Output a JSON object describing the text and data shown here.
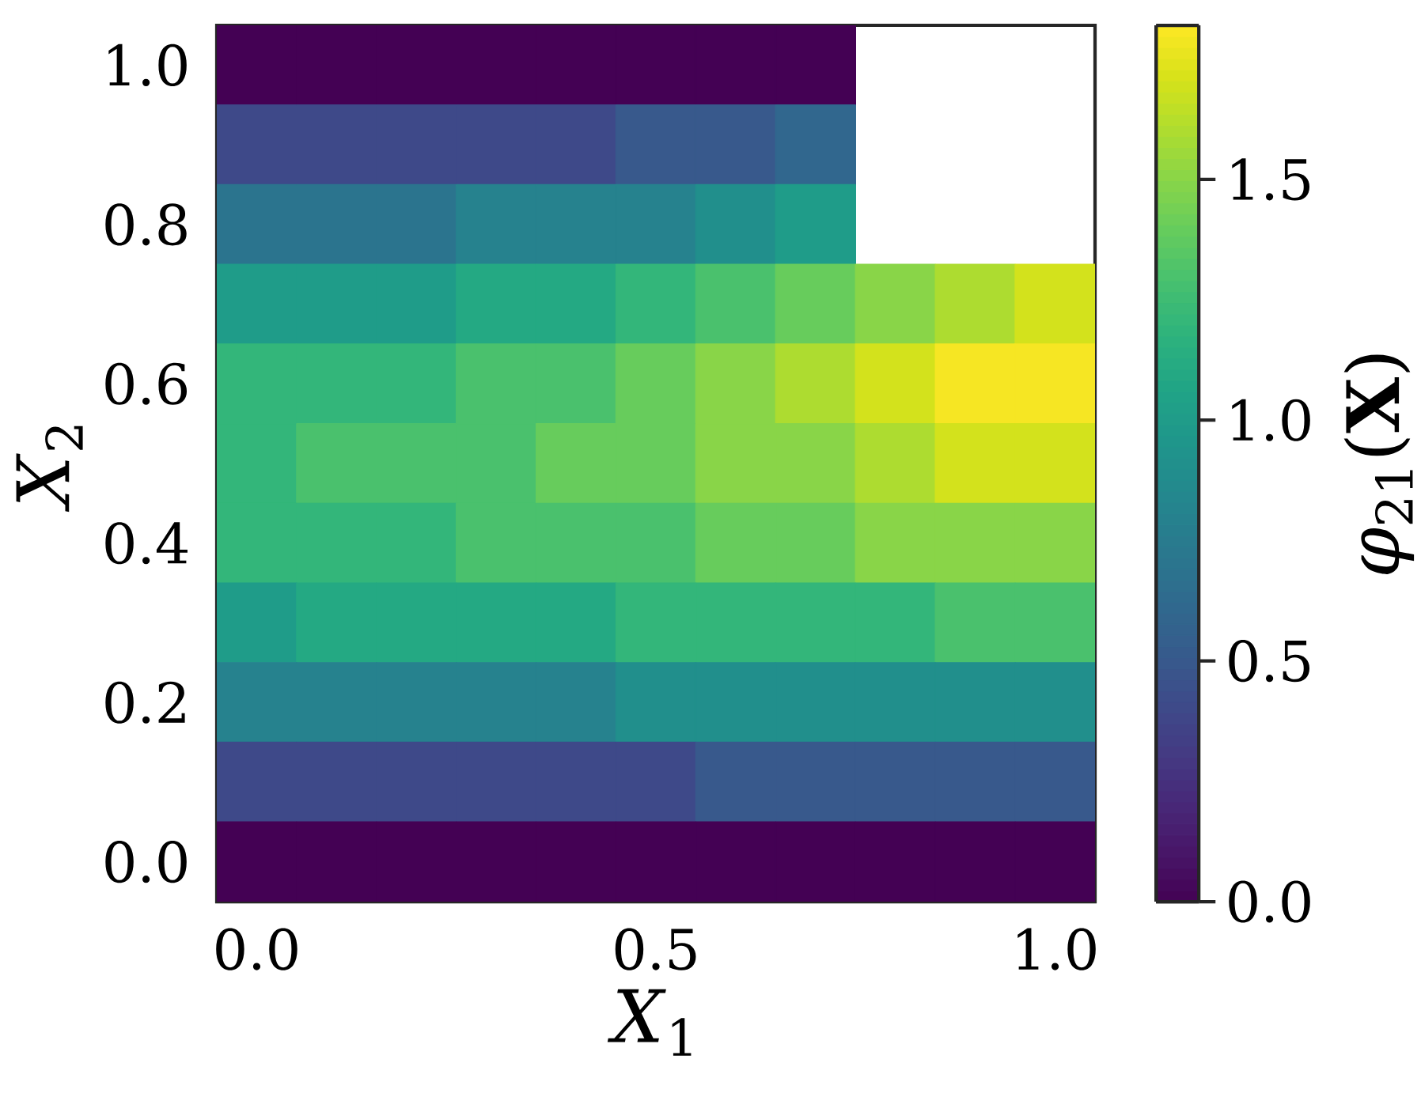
{
  "chart_data": {
    "type": "heatmap",
    "xlabel": "*X*$_{1}$",
    "ylabel": "*X*$_{2}$",
    "clabel": "*φ*$_{21}$(**X**)",
    "x": [
      0,
      0.1,
      0.2,
      0.3,
      0.4,
      0.5,
      0.6,
      0.7,
      0.8,
      0.9,
      1.0
    ],
    "y": [
      1.0,
      0.9,
      0.8,
      0.7,
      0.6,
      0.5,
      0.4,
      0.3,
      0.2,
      0.1,
      0.0
    ],
    "cells": [
      [
        0.0,
        0.0,
        0.0,
        0.0,
        0.0,
        0.0,
        0.0,
        0.0,
        null,
        null,
        null
      ],
      [
        0.4,
        0.4,
        0.4,
        0.4,
        0.4,
        0.5,
        0.5,
        0.6,
        null,
        null,
        null
      ],
      [
        0.7,
        0.7,
        0.7,
        0.8,
        0.8,
        0.8,
        0.9,
        1.0,
        null,
        null,
        null
      ],
      [
        1.0,
        1.0,
        1.0,
        1.1,
        1.1,
        1.2,
        1.3,
        1.4,
        1.5,
        1.6,
        1.7
      ],
      [
        1.2,
        1.2,
        1.2,
        1.3,
        1.3,
        1.4,
        1.5,
        1.6,
        1.7,
        1.8,
        1.8
      ],
      [
        1.2,
        1.3,
        1.3,
        1.3,
        1.4,
        1.4,
        1.5,
        1.5,
        1.6,
        1.7,
        1.7
      ],
      [
        1.2,
        1.2,
        1.2,
        1.3,
        1.3,
        1.3,
        1.4,
        1.4,
        1.5,
        1.5,
        1.5
      ],
      [
        1.0,
        1.1,
        1.1,
        1.1,
        1.1,
        1.2,
        1.2,
        1.2,
        1.2,
        1.3,
        1.3
      ],
      [
        0.8,
        0.8,
        0.8,
        0.8,
        0.8,
        0.9,
        0.9,
        0.9,
        0.9,
        0.9,
        0.9
      ],
      [
        0.4,
        0.4,
        0.4,
        0.4,
        0.4,
        0.4,
        0.5,
        0.5,
        0.5,
        0.5,
        0.5
      ],
      [
        0.0,
        0.0,
        0.0,
        0.0,
        0.0,
        0.0,
        0.0,
        0.0,
        0.0,
        0.0,
        0.0
      ]
    ],
    "xlim": [
      -0.05,
      1.05
    ],
    "ylim": [
      -0.05,
      1.05
    ],
    "xticks": [
      {
        "value": 0,
        "label": "0.0"
      },
      {
        "value": 0.5,
        "label": "0.5"
      },
      {
        "value": 1.0,
        "label": "1.0"
      }
    ],
    "yticks": [
      {
        "value": 0,
        "label": "0.0"
      },
      {
        "value": 0.2,
        "label": "0.2"
      },
      {
        "value": 0.4,
        "label": "0.4"
      },
      {
        "value": 0.6,
        "label": "0.6"
      },
      {
        "value": 0.8,
        "label": "0.8"
      },
      {
        "value": 1.0,
        "label": "1.0"
      }
    ],
    "clim": [
      0,
      1.82
    ],
    "cticks": [
      {
        "value": 0,
        "label": "0.0"
      },
      {
        "value": 0.5,
        "label": "0.5"
      },
      {
        "value": 1.0,
        "label": "1.0"
      },
      {
        "value": 1.5,
        "label": "1.5"
      }
    ]
  }
}
